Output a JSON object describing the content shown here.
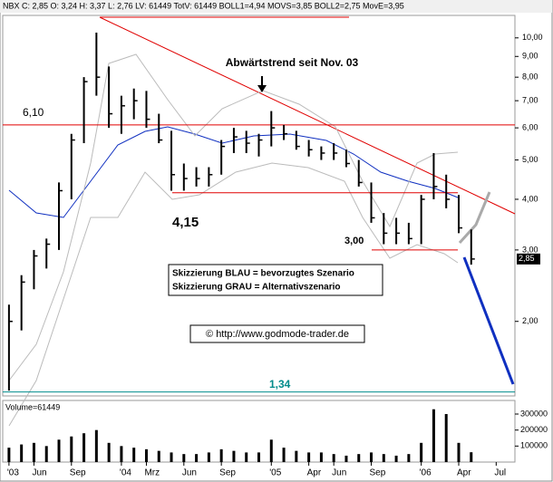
{
  "chart_data": {
    "type": "ohlc",
    "header": "NBX C: 2,85 O: 3,24 H: 3,37 L: 2,76 LV: 61449 TotV: 61449 BOLL1=4,94 MOVS=3,85 BOLL2=2,75 MovE=3,95",
    "annotation": "Abwärtstrend seit Nov. 03",
    "legend_lines": [
      "Skizzierung BLAU = bevorzugtes Szenario",
      "Skizzierung GRAU = Alternativszenario"
    ],
    "copyright": "© http://www.godmode-trader.de",
    "last_price": {
      "value": 2.85,
      "label": "2,85"
    },
    "levels": [
      {
        "value": 6.1,
        "label": "6,10",
        "color": "#e00000"
      },
      {
        "value": 4.15,
        "label": "4,15",
        "color": "#e00000"
      },
      {
        "value": 3.0,
        "label": "3,00",
        "color": "#e00000"
      },
      {
        "value": 1.34,
        "label": "1,34",
        "color": "#008b8b"
      }
    ],
    "categories": [
      "'03",
      null,
      "Jun",
      null,
      null,
      "Sep",
      null,
      null,
      null,
      "'04",
      null,
      "Mrz",
      null,
      null,
      "Jun",
      null,
      null,
      "Sep",
      null,
      null,
      null,
      "'05",
      null,
      null,
      "Apr",
      null,
      "Jun",
      null,
      null,
      "Sep",
      null,
      null,
      null,
      "'06",
      null,
      null,
      "Apr",
      null,
      null,
      "Jul",
      null
    ],
    "high": [
      2.2,
      2.6,
      3.0,
      3.2,
      4.4,
      5.8,
      8.0,
      10.3,
      8.5,
      7.2,
      7.5,
      7.4,
      6.5,
      5.9,
      4.9,
      4.8,
      4.8,
      5.6,
      6.0,
      5.9,
      5.8,
      6.6,
      6.1,
      5.9,
      5.6,
      5.4,
      5.5,
      5.3,
      5.0,
      4.4,
      3.7,
      3.6,
      3.5,
      4.1,
      5.2,
      4.6,
      4.1,
      3.37,
      null,
      null,
      null
    ],
    "low": [
      1.35,
      1.9,
      2.4,
      2.7,
      3.0,
      4.0,
      5.5,
      7.2,
      6.0,
      5.8,
      6.3,
      6.0,
      5.5,
      4.2,
      4.2,
      4.3,
      4.3,
      4.6,
      5.2,
      5.2,
      5.1,
      5.4,
      5.6,
      5.3,
      5.1,
      5.0,
      5.0,
      4.8,
      4.3,
      3.5,
      3.1,
      3.1,
      3.1,
      3.1,
      4.0,
      3.8,
      3.3,
      2.76,
      null,
      null,
      null
    ],
    "close": [
      2.0,
      2.5,
      2.9,
      3.1,
      4.2,
      5.6,
      7.8,
      8.0,
      6.5,
      6.8,
      7.0,
      6.3,
      5.6,
      4.6,
      4.5,
      4.5,
      4.6,
      5.4,
      5.7,
      5.5,
      5.6,
      6.0,
      5.8,
      5.4,
      5.3,
      5.2,
      5.2,
      4.9,
      4.4,
      3.6,
      3.3,
      3.3,
      3.2,
      4.0,
      4.3,
      4.0,
      3.4,
      2.85,
      null,
      null,
      null
    ],
    "color": "#000000",
    "ylog": true,
    "ylim": [
      1.31,
      11.36
    ],
    "yticks": [
      {
        "value": 10,
        "label": "10,00"
      },
      {
        "value": 9,
        "label": "9,00"
      },
      {
        "value": 8,
        "label": "8,00"
      },
      {
        "value": 7,
        "label": "7,00"
      },
      {
        "value": 6,
        "label": "6,00"
      },
      {
        "value": 5,
        "label": "5,00"
      },
      {
        "value": 4,
        "label": "4,00"
      },
      {
        "value": 3,
        "label": "3,00"
      },
      {
        "value": 2,
        "label": "2,00"
      }
    ],
    "volume_label": "Volume=61449",
    "volume": [
      90000,
      110000,
      120000,
      100000,
      140000,
      160000,
      180000,
      200000,
      120000,
      100000,
      90000,
      80000,
      70000,
      60000,
      50000,
      50000,
      60000,
      80000,
      70000,
      60000,
      60000,
      140000,
      90000,
      70000,
      60000,
      60000,
      50000,
      40000,
      50000,
      60000,
      50000,
      40000,
      50000,
      120000,
      330000,
      300000,
      120000,
      61449,
      null,
      null,
      null
    ],
    "vlim": [
      0,
      385000
    ],
    "vticks": [
      300000,
      200000,
      100000
    ]
  }
}
